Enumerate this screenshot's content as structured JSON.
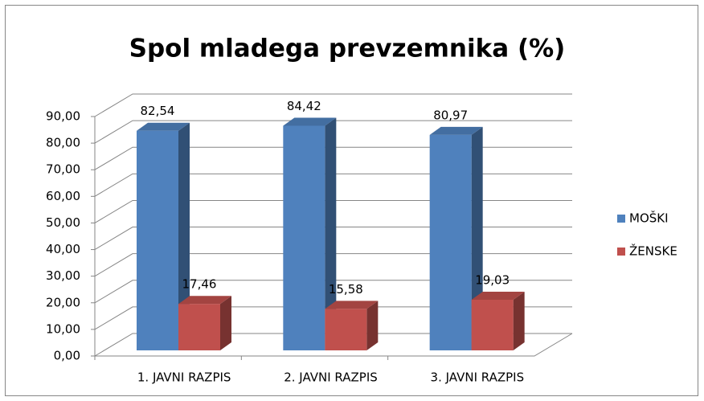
{
  "chart_data": {
    "type": "bar3d",
    "title": "Spol mladega prevzemnika (%)",
    "categories": [
      "1. JAVNI RAZPIS",
      "2. JAVNI RAZPIS",
      "3. JAVNI RAZPIS"
    ],
    "series": [
      {
        "name": "MOŠKI",
        "color": "#4f81bd",
        "values": [
          82.54,
          84.42,
          80.97
        ],
        "value_labels": [
          "82,54",
          "84,42",
          "80,97"
        ]
      },
      {
        "name": "ŽENSKE",
        "color": "#c0504d",
        "values": [
          17.46,
          15.58,
          19.03
        ],
        "value_labels": [
          "17,46",
          "15,58",
          "19,03"
        ]
      }
    ],
    "ylim": [
      0,
      90
    ],
    "yticks": [
      {
        "value": 0,
        "label": "0,00"
      },
      {
        "value": 10,
        "label": "10,00"
      },
      {
        "value": 20,
        "label": "20,00"
      },
      {
        "value": 30,
        "label": "30,00"
      },
      {
        "value": 40,
        "label": "40,00"
      },
      {
        "value": 50,
        "label": "50,00"
      },
      {
        "value": 60,
        "label": "60,00"
      },
      {
        "value": 70,
        "label": "70,00"
      },
      {
        "value": 80,
        "label": "80,00"
      },
      {
        "value": 90,
        "label": "90,00"
      }
    ],
    "grid": true,
    "legend": "right"
  }
}
